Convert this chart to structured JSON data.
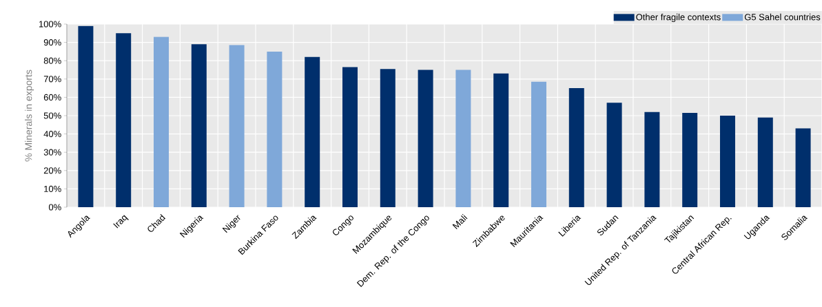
{
  "chart_data": {
    "type": "bar",
    "ylabel": "% Minerals in exports",
    "categories": [
      "Angola",
      "Iraq",
      "Chad",
      "Nigeria",
      "Niger",
      "Burkina Faso",
      "Zambia",
      "Congo",
      "Mozambique",
      "Dem. Rep. of the Congo",
      "Mali",
      "Zimbabwe",
      "Mauritania",
      "Liberia",
      "Sudan",
      "United Rep. of Tanzania",
      "Tajikistan",
      "Central African Rep.",
      "Uganda",
      "Somalia"
    ],
    "series": [
      {
        "name": "Other fragile contexts",
        "color": "#002f6c",
        "values": [
          99,
          95,
          null,
          89,
          null,
          null,
          82,
          76.5,
          75.5,
          75,
          null,
          73,
          null,
          65,
          57,
          52,
          51.5,
          50,
          49,
          43
        ]
      },
      {
        "name": "G5 Sahel countries",
        "color": "#7fa8d9",
        "values": [
          null,
          null,
          93,
          null,
          88.5,
          85,
          null,
          null,
          null,
          null,
          75,
          null,
          68.5,
          null,
          null,
          null,
          null,
          null,
          null,
          null
        ]
      }
    ],
    "ylim": [
      0,
      100
    ],
    "yticks": [
      {
        "value": 0,
        "label": "0%"
      },
      {
        "value": 10,
        "label": "10%"
      },
      {
        "value": 20,
        "label": "20%"
      },
      {
        "value": 30,
        "label": "30%"
      },
      {
        "value": 40,
        "label": "40%"
      },
      {
        "value": 50,
        "label": "50%"
      },
      {
        "value": 60,
        "label": "60%"
      },
      {
        "value": 70,
        "label": "70%"
      },
      {
        "value": 80,
        "label": "80%"
      },
      {
        "value": 90,
        "label": "90%"
      },
      {
        "value": 100,
        "label": "100%"
      }
    ],
    "grid": true,
    "legend": "top"
  }
}
